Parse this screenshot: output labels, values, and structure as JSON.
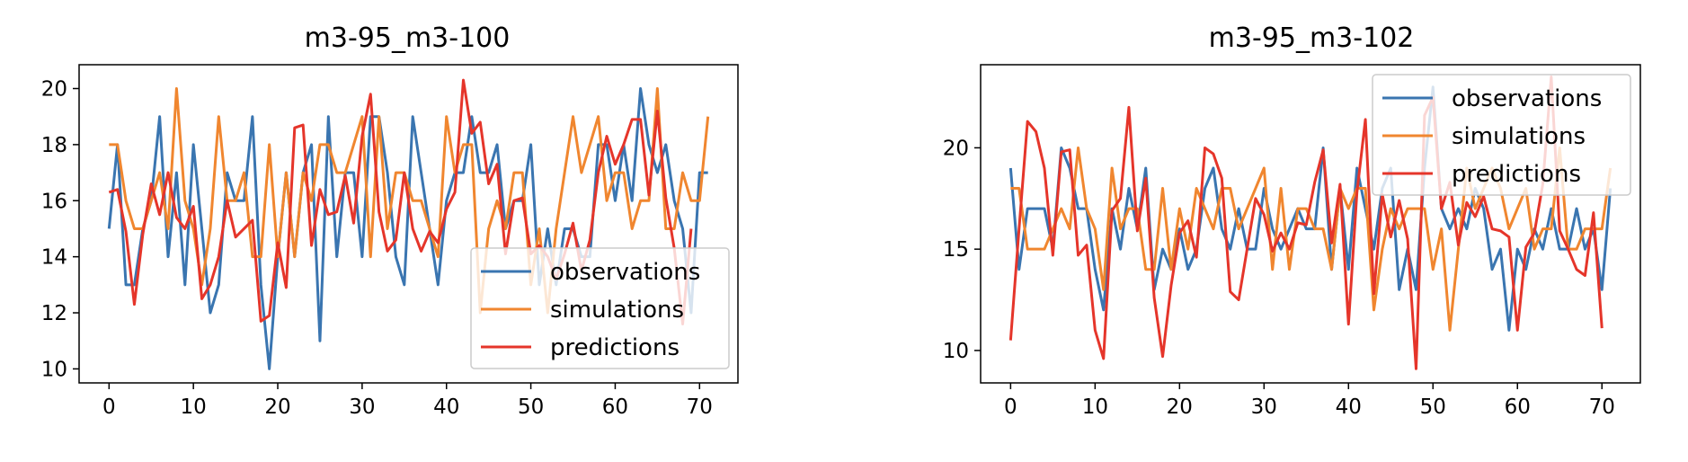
{
  "colors": {
    "observations": "#3a75b0",
    "simulations": "#f0862f",
    "predictions": "#e5352a",
    "axis": "#000000",
    "legend_border": "#cccccc"
  },
  "chart_data": [
    {
      "type": "line",
      "title": "m3-95_m3-100",
      "xlabel": "",
      "ylabel": "",
      "xlim": [
        -3.55,
        74.55
      ],
      "ylim": [
        9.5,
        20.85
      ],
      "xticks": [
        0,
        10,
        20,
        30,
        40,
        50,
        60,
        70
      ],
      "yticks": [
        10,
        12,
        14,
        16,
        18,
        20
      ],
      "grid": false,
      "legend_position": "lower right",
      "x_start": 0,
      "series": [
        {
          "name": "observations",
          "color": "#3a75b0",
          "values": [
            15,
            18,
            13,
            13,
            15,
            16,
            19,
            14,
            17,
            13,
            18,
            15,
            12,
            13,
            17,
            16,
            16,
            19,
            13,
            10,
            14,
            17,
            14,
            17,
            18,
            11,
            19,
            14,
            17,
            17,
            14,
            19,
            19,
            17,
            14,
            13,
            19,
            17,
            15,
            13,
            16,
            17,
            17,
            19,
            17,
            17,
            18,
            15,
            16,
            16,
            18,
            13,
            15,
            13,
            15,
            15,
            14,
            14,
            18,
            18,
            16,
            18,
            16,
            20,
            18,
            17,
            18,
            16,
            15,
            12,
            17,
            17
          ]
        },
        {
          "name": "simulations",
          "color": "#f0862f",
          "values": [
            18,
            18,
            16,
            15,
            15,
            16,
            17,
            15,
            20,
            16,
            15,
            13,
            15,
            19,
            16,
            16,
            17,
            14,
            14,
            18,
            14,
            17,
            14,
            17,
            16,
            18,
            18,
            17,
            17,
            18,
            19,
            14,
            19,
            15,
            17,
            17,
            16,
            16,
            15,
            14,
            19,
            17,
            18,
            18,
            12,
            15,
            16,
            15,
            17,
            17,
            13,
            15,
            12,
            15,
            17,
            19,
            17,
            18,
            19,
            16,
            17,
            17,
            15,
            16,
            16,
            20,
            15,
            15,
            17,
            16,
            16,
            19
          ]
        },
        {
          "name": "predictions",
          "color": "#e5352a",
          "values": [
            16.3,
            16.4,
            14.9,
            12.3,
            14.8,
            16.6,
            15.5,
            17.0,
            15.4,
            15.0,
            15.8,
            12.5,
            13.0,
            14.0,
            16.0,
            14.7,
            15.0,
            15.3,
            11.7,
            11.9,
            14.5,
            12.9,
            18.6,
            18.7,
            14.4,
            16.4,
            15.5,
            15.6,
            16.9,
            15.2,
            18.3,
            19.8,
            15.6,
            14.2,
            14.6,
            17.0,
            15.0,
            14.2,
            14.9,
            14.5,
            15.7,
            16.3,
            20.3,
            18.4,
            18.8,
            16.6,
            17.3,
            14.1,
            16.0,
            16.1,
            14.1,
            14.4,
            14.0,
            13.2,
            14.1,
            15.2,
            13.5,
            14.6,
            17.0,
            18.3,
            17.3,
            18.0,
            18.9,
            18.9,
            16.2,
            19.2,
            16.1,
            14.3,
            11.6,
            15.0
          ]
        }
      ]
    },
    {
      "type": "line",
      "title": "m3-95_m3-102",
      "xlabel": "",
      "ylabel": "",
      "xlim": [
        -3.55,
        74.55
      ],
      "ylim": [
        8.4,
        24.1
      ],
      "xticks": [
        0,
        10,
        20,
        30,
        40,
        50,
        60,
        70
      ],
      "yticks": [
        10,
        15,
        20
      ],
      "grid": false,
      "legend_position": "upper right",
      "x_start": 0,
      "series": [
        {
          "name": "observations",
          "color": "#3a75b0",
          "values": [
            19,
            14,
            17,
            17,
            17,
            15,
            20,
            19,
            17,
            17,
            14,
            12,
            17,
            15,
            18,
            16,
            19,
            13,
            15,
            14,
            16,
            14,
            15,
            18,
            19,
            16,
            15,
            17,
            15,
            15,
            18,
            16,
            15,
            16,
            17,
            16,
            16,
            20,
            14,
            18,
            14,
            19,
            17,
            15,
            18,
            19,
            13,
            15,
            13,
            19,
            23,
            17,
            16,
            17,
            16,
            18,
            17,
            14,
            15,
            11,
            15,
            14,
            16,
            15,
            17,
            15,
            15,
            17,
            15,
            16,
            13,
            18
          ]
        },
        {
          "name": "simulations",
          "color": "#f0862f",
          "values": [
            18,
            18,
            15,
            15,
            15,
            16,
            17,
            16,
            20,
            17,
            16,
            13,
            19,
            16,
            17,
            17,
            14,
            14,
            18,
            14,
            17,
            15,
            18,
            17,
            16,
            18,
            18,
            16,
            17,
            18,
            19,
            14,
            18,
            14,
            17,
            17,
            16,
            16,
            14,
            18,
            17,
            18,
            18,
            12,
            15,
            17,
            16,
            17,
            17,
            17,
            14,
            16,
            11,
            15,
            19,
            17,
            18,
            19,
            18,
            16,
            17,
            18,
            15,
            16,
            16,
            20,
            15,
            15,
            16,
            16,
            16,
            19
          ]
        },
        {
          "name": "predictions",
          "color": "#e5352a",
          "values": [
            10.5,
            16.0,
            21.3,
            20.8,
            19.0,
            14.7,
            19.8,
            19.9,
            14.7,
            15.2,
            11.0,
            9.6,
            16.9,
            17.5,
            22.0,
            15.9,
            18.5,
            12.6,
            9.7,
            13.2,
            15.8,
            16.4,
            14.6,
            20.0,
            19.7,
            18.5,
            12.9,
            12.5,
            15.0,
            17.5,
            16.7,
            14.9,
            15.8,
            15.0,
            16.3,
            16.2,
            18.3,
            19.9,
            15.3,
            18.2,
            11.3,
            17.8,
            21.4,
            12.8,
            17.7,
            15.6,
            17.4,
            15.5,
            9.1,
            21.6,
            22.5,
            17.0,
            18.3,
            15.2,
            17.3,
            16.6,
            17.6,
            16.0,
            15.9,
            15.6,
            11.0,
            15.1,
            15.8,
            18.2,
            23.5,
            15.9,
            15.0,
            14.0,
            13.7,
            16.8,
            11.1
          ]
        }
      ]
    }
  ]
}
